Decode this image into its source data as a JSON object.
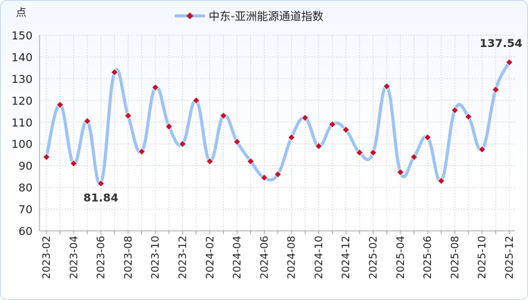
{
  "chart_data": {
    "type": "line",
    "ylabel": "点",
    "ylim": [
      60,
      150
    ],
    "yticks": [
      60,
      70,
      80,
      90,
      100,
      110,
      120,
      130,
      140,
      150
    ],
    "x": [
      "2023-02",
      "2023-03",
      "2023-04",
      "2023-05",
      "2023-06",
      "2023-07",
      "2023-08",
      "2023-09",
      "2023-10",
      "2023-11",
      "2023-12",
      "2024-01",
      "2024-02",
      "2024-03",
      "2024-04",
      "2024-05",
      "2024-06",
      "2024-07",
      "2024-08",
      "2024-09",
      "2024-10",
      "2024-11",
      "2024-12",
      "2025-01",
      "2025-02",
      "2025-03",
      "2025-04",
      "2025-05",
      "2025-06",
      "2025-07",
      "2025-08",
      "2025-09",
      "2025-10",
      "2025-11",
      "2025-12"
    ],
    "xticks": [
      "2023-02",
      "2023-04",
      "2023-06",
      "2023-08",
      "2023-10",
      "2023-12",
      "2024-02",
      "2024-04",
      "2024-06",
      "2024-08",
      "2024-10",
      "2024-12",
      "2025-02",
      "2025-04",
      "2025-06",
      "2025-08",
      "2025-10",
      "2025-12"
    ],
    "series": [
      {
        "name": "中东-亚洲能源通道指数",
        "values": [
          94,
          118,
          91,
          110.5,
          81.84,
          133,
          113,
          96.5,
          126,
          108,
          100,
          120,
          92,
          113,
          101,
          92,
          84.5,
          86,
          103,
          112,
          99,
          109,
          106.5,
          96,
          96,
          126.5,
          87,
          94,
          103,
          83,
          115.5,
          112.5,
          97.5,
          125,
          137.54
        ],
        "color": "#9cc3f5",
        "marker_color": "#c0152f"
      }
    ],
    "annotations": [
      {
        "index": 4,
        "text": "81.84",
        "position": "below"
      },
      {
        "index": 34,
        "text": "137.54",
        "position": "above"
      }
    ],
    "grid": true,
    "legend": "top-center"
  }
}
